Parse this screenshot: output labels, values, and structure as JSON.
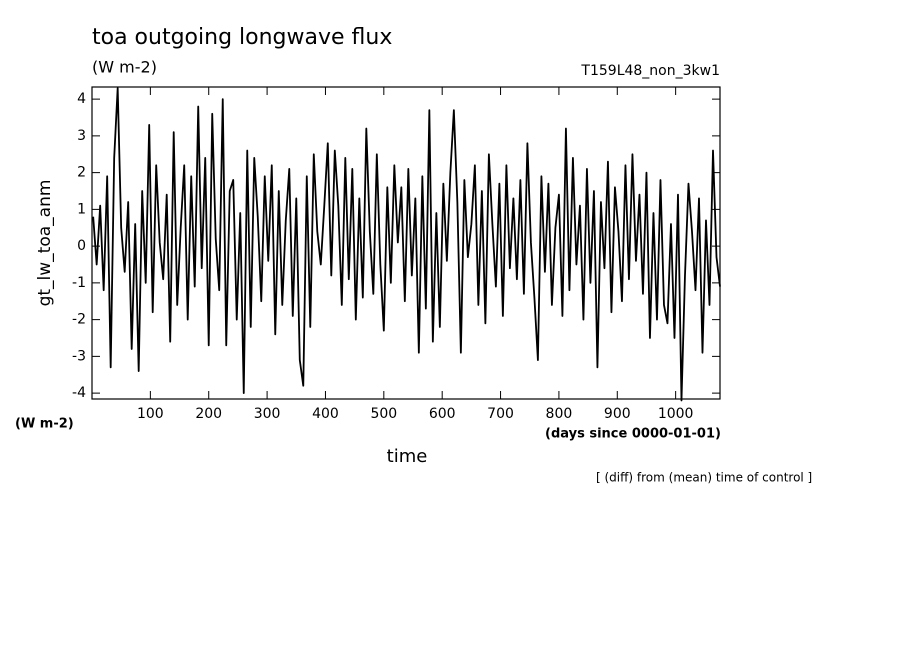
{
  "chart_data": {
    "type": "line",
    "title": "toa outgoing longwave flux",
    "subtitle": "(W m-2)",
    "run_label": "T159L48_non_3kw1",
    "y_label": "gt_lw_toa_anm",
    "y_units": "(W m-2)",
    "x_label": "time",
    "x_units": "(days since 0000-01-01)",
    "note": "[ (diff) from (mean) time of control ]",
    "color": "#000000",
    "xlim": [
      0,
      1076
    ],
    "ylim": [
      -4.16,
      4.33
    ],
    "xticks": [
      100,
      200,
      300,
      400,
      500,
      600,
      700,
      800,
      900,
      1000
    ],
    "yticks": [
      -4,
      -3,
      -2,
      -1,
      0,
      1,
      2,
      3,
      4
    ],
    "x": [
      2,
      8,
      14,
      20,
      26,
      32,
      38,
      44,
      50,
      56,
      62,
      68,
      74,
      80,
      86,
      92,
      98,
      104,
      110,
      116,
      122,
      128,
      134,
      140,
      146,
      152,
      158,
      164,
      170,
      176,
      182,
      188,
      194,
      200,
      206,
      212,
      218,
      224,
      230,
      236,
      242,
      248,
      254,
      260,
      266,
      272,
      278,
      284,
      290,
      296,
      302,
      308,
      314,
      320,
      326,
      332,
      338,
      344,
      350,
      356,
      362,
      368,
      374,
      380,
      386,
      392,
      398,
      404,
      410,
      416,
      422,
      428,
      434,
      440,
      446,
      452,
      458,
      464,
      470,
      476,
      482,
      488,
      494,
      500,
      506,
      512,
      518,
      524,
      530,
      536,
      542,
      548,
      554,
      560,
      566,
      572,
      578,
      584,
      590,
      596,
      602,
      608,
      614,
      620,
      626,
      632,
      638,
      644,
      650,
      656,
      662,
      668,
      674,
      680,
      686,
      692,
      698,
      704,
      710,
      716,
      722,
      728,
      734,
      740,
      746,
      752,
      758,
      764,
      770,
      776,
      782,
      788,
      794,
      800,
      806,
      812,
      818,
      824,
      830,
      836,
      842,
      848,
      854,
      860,
      866,
      872,
      878,
      884,
      890,
      896,
      902,
      908,
      914,
      920,
      926,
      932,
      938,
      944,
      950,
      956,
      962,
      968,
      974,
      980,
      986,
      992,
      998,
      1004,
      1010,
      1016,
      1022,
      1028,
      1034,
      1040,
      1046,
      1052,
      1058,
      1064,
      1070,
      1076
    ],
    "values": [
      0.8,
      -0.5,
      1.1,
      -1.2,
      1.9,
      -3.3,
      2.4,
      4.3,
      0.5,
      -0.7,
      1.2,
      -2.8,
      0.6,
      -3.4,
      1.5,
      -1.0,
      3.3,
      -1.8,
      2.2,
      0.1,
      -0.9,
      1.4,
      -2.6,
      3.1,
      -1.6,
      0.5,
      2.2,
      -2.0,
      1.9,
      -1.1,
      3.8,
      -0.6,
      2.4,
      -2.7,
      3.6,
      0.2,
      -1.2,
      4.0,
      -2.7,
      1.5,
      1.8,
      -2.0,
      0.9,
      -4.0,
      2.6,
      -2.2,
      2.4,
      0.8,
      -1.5,
      1.9,
      -0.4,
      2.2,
      -2.4,
      1.5,
      -1.6,
      0.7,
      2.1,
      -1.9,
      1.3,
      -3.1,
      -3.8,
      1.9,
      -2.2,
      2.5,
      0.4,
      -0.5,
      1.1,
      2.8,
      -0.8,
      2.6,
      1.1,
      -1.6,
      2.4,
      -0.9,
      2.1,
      -2.0,
      1.3,
      -1.4,
      3.2,
      0.4,
      -1.3,
      2.5,
      -0.5,
      -2.3,
      1.6,
      -1.0,
      2.2,
      0.1,
      1.6,
      -1.5,
      2.1,
      -0.8,
      1.3,
      -2.9,
      1.9,
      -1.7,
      3.7,
      -2.6,
      0.9,
      -2.2,
      1.7,
      -0.4,
      2.0,
      3.7,
      1.2,
      -2.9,
      1.8,
      -0.3,
      0.6,
      2.2,
      -1.6,
      1.5,
      -2.1,
      2.5,
      0.6,
      -1.1,
      1.7,
      -1.9,
      2.2,
      -0.6,
      1.3,
      -0.9,
      1.8,
      -1.3,
      2.8,
      0.1,
      -1.4,
      -3.1,
      1.9,
      -0.7,
      1.7,
      -1.6,
      0.5,
      1.4,
      -1.9,
      3.2,
      -1.2,
      2.4,
      -0.5,
      1.1,
      -2.0,
      2.1,
      -1.0,
      1.5,
      -3.3,
      1.2,
      -0.6,
      2.3,
      -1.8,
      1.6,
      0.4,
      -1.5,
      2.2,
      -0.9,
      2.5,
      -0.4,
      1.4,
      -1.3,
      2.0,
      -2.5,
      0.9,
      -2.0,
      1.8,
      -1.6,
      -2.1,
      0.6,
      -2.5,
      1.4,
      -4.2,
      -0.8,
      1.7,
      0.4,
      -1.2,
      1.3,
      -2.9,
      0.7,
      -1.6,
      2.6,
      -0.3,
      -1.1
    ]
  }
}
